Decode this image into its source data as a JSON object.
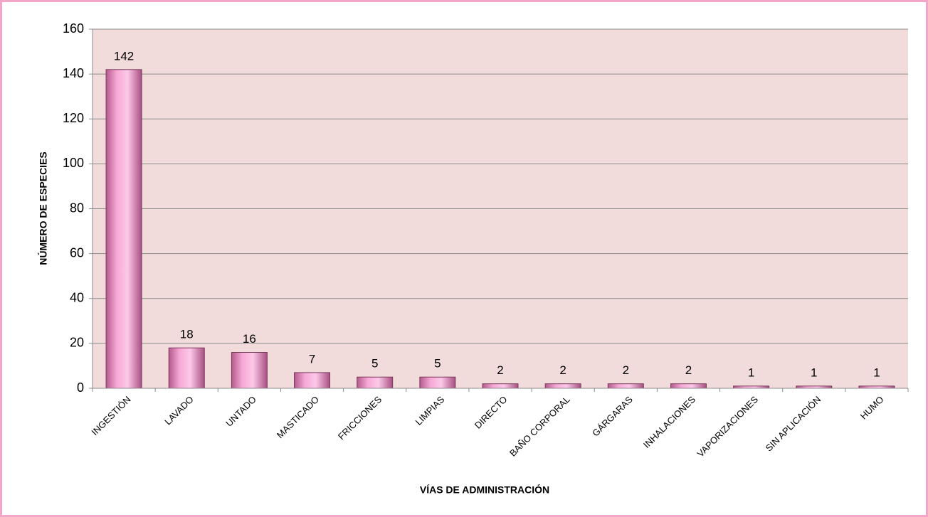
{
  "chart_data": {
    "type": "bar",
    "xlabel": "VÍAS DE ADMINISTRACIÓN",
    "ylabel": "NÚMERO DE ESPECIES",
    "categories": [
      "INGESTIÓN",
      "LAVADO",
      "UNTADO",
      "MASTICADO",
      "FRICCIONES",
      "LIMPIAS",
      "DIRECTO",
      "BAÑO CORPORAL",
      "GÁRGARAS",
      "INHALACIONES",
      "VAPORIZACIONES",
      "SIN APLICACIÓN",
      "HUMO"
    ],
    "values": [
      142,
      18,
      16,
      7,
      5,
      5,
      2,
      2,
      2,
      2,
      1,
      1,
      1
    ],
    "color": "#f5a3d3",
    "ylim": [
      0,
      160
    ],
    "yticks": [
      0,
      20,
      40,
      60,
      80,
      100,
      120,
      140,
      160
    ],
    "grid": true
  }
}
